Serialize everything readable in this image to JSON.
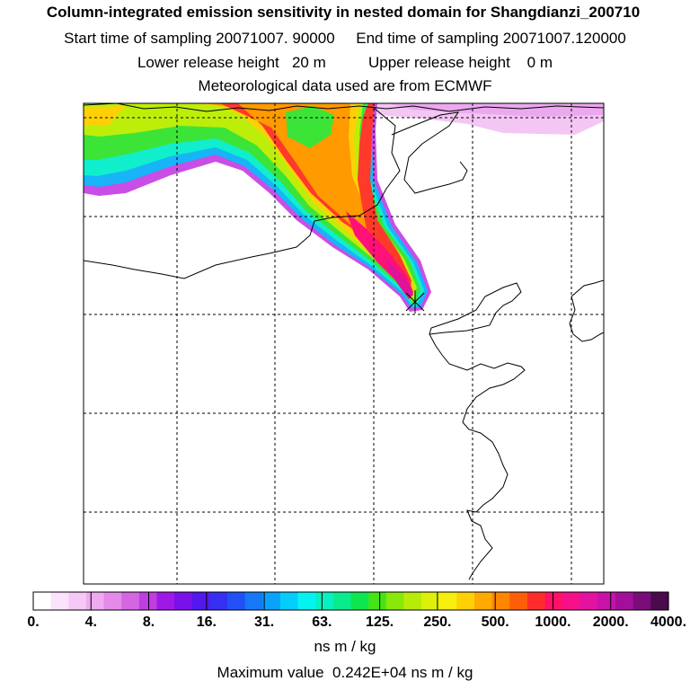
{
  "header": {
    "title": "Column-integrated emission sensitivity in nested domain for Shangdianzi_200710",
    "line2": "Start time of sampling 20071007. 90000     End time of sampling 20071007.120000",
    "line3": "Lower release height   20 m          Upper release height    0 m",
    "line4": "Meteorological data used are from ECMWF"
  },
  "legend": {
    "colors": [
      "#ffffff",
      "#fbe3fb",
      "#f6c8f6",
      "#efaaf0",
      "#e58ae8",
      "#d466e4",
      "#bf3ee2",
      "#a018e6",
      "#7a10ea",
      "#5318ee",
      "#3530f2",
      "#2050f6",
      "#1478f8",
      "#0aa2fa",
      "#04cdfc",
      "#06f2f2",
      "#07f0c0",
      "#08ec8c",
      "#0ee650",
      "#44e418",
      "#88e80a",
      "#b6ec08",
      "#dcf00a",
      "#f6ee0c",
      "#ffd006",
      "#ffaa00",
      "#ff8600",
      "#ff5e08",
      "#ff2c2c",
      "#ff1166",
      "#f6108a",
      "#e412a0",
      "#c812a8",
      "#a30f9a",
      "#7a0d7a",
      "#4a0a4c"
    ],
    "tick_labels": [
      "0.",
      "4.",
      "8.",
      "16.",
      "31.",
      "63.",
      "125.",
      "250.",
      "500.",
      "1000.",
      "2000.",
      "4000."
    ],
    "unit": "ns m / kg"
  },
  "footer": {
    "max_value": "Maximum value  0.242E+04 ns m / kg"
  },
  "map": {
    "receptor": "Shangdianzi"
  }
}
